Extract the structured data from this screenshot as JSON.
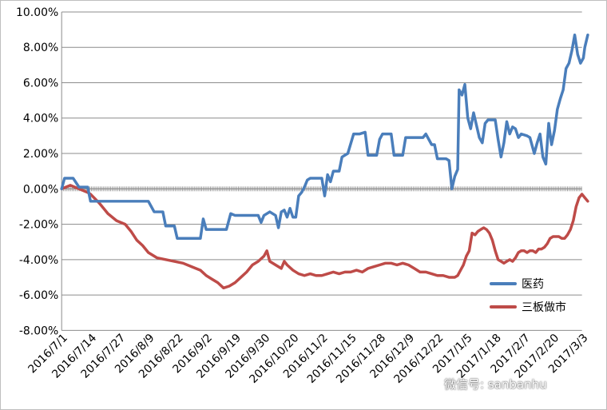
{
  "chart_data": {
    "type": "line",
    "title": "",
    "xlabel": "",
    "ylabel": "",
    "ylim": [
      -8,
      10
    ],
    "yticks": [
      "10.00%",
      "8.00%",
      "6.00%",
      "4.00%",
      "2.00%",
      "0.00%",
      "-2.00%",
      "-4.00%",
      "-6.00%",
      "-8.00%"
    ],
    "xticks": [
      "2016/7/1",
      "2016/7/14",
      "2016/7/27",
      "2016/8/9",
      "2016/8/22",
      "2016/9/2",
      "2016/9/19",
      "2016/9/30",
      "2016/10/20",
      "2016/11/2",
      "2016/11/15",
      "2016/11/28",
      "2016/12/9",
      "2016/12/22",
      "2017/1/5",
      "2017/1/18",
      "2017/2/7",
      "2017/2/20",
      "2017/3/3"
    ],
    "grid": "horizontal",
    "legend_position": "bottom-right",
    "series": [
      {
        "name": "医药",
        "color": "#4a7ebb",
        "points": [
          [
            0,
            0.0
          ],
          [
            0.1,
            0.6
          ],
          [
            0.4,
            0.6
          ],
          [
            0.6,
            0.1
          ],
          [
            0.9,
            0.1
          ],
          [
            1.0,
            -0.7
          ],
          [
            1.3,
            -0.7
          ],
          [
            1.8,
            -0.7
          ],
          [
            2.4,
            -0.7
          ],
          [
            3.0,
            -0.7
          ],
          [
            3.2,
            -1.3
          ],
          [
            3.5,
            -1.3
          ],
          [
            3.6,
            -2.1
          ],
          [
            3.9,
            -2.1
          ],
          [
            4.0,
            -2.8
          ],
          [
            4.4,
            -2.8
          ],
          [
            4.6,
            -2.8
          ],
          [
            4.8,
            -2.8
          ],
          [
            4.9,
            -1.7
          ],
          [
            5.0,
            -2.3
          ],
          [
            5.4,
            -2.3
          ],
          [
            5.7,
            -2.3
          ],
          [
            5.85,
            -1.4
          ],
          [
            6.0,
            -1.5
          ],
          [
            6.5,
            -1.5
          ],
          [
            6.8,
            -1.5
          ],
          [
            6.9,
            -1.9
          ],
          [
            7.0,
            -1.5
          ],
          [
            7.2,
            -1.3
          ],
          [
            7.4,
            -1.5
          ],
          [
            7.5,
            -2.2
          ],
          [
            7.6,
            -1.3
          ],
          [
            7.7,
            -1.2
          ],
          [
            7.8,
            -1.6
          ],
          [
            7.9,
            -1.1
          ],
          [
            8.0,
            -1.6
          ],
          [
            8.1,
            -1.6
          ],
          [
            8.2,
            -0.4
          ],
          [
            8.3,
            -0.2
          ],
          [
            8.4,
            0.1
          ],
          [
            8.5,
            0.5
          ],
          [
            8.6,
            0.6
          ],
          [
            8.8,
            0.6
          ],
          [
            9.0,
            0.6
          ],
          [
            9.1,
            -0.4
          ],
          [
            9.2,
            0.8
          ],
          [
            9.3,
            0.4
          ],
          [
            9.4,
            1.0
          ],
          [
            9.6,
            1.0
          ],
          [
            9.7,
            1.8
          ],
          [
            9.9,
            2.0
          ],
          [
            10.1,
            3.1
          ],
          [
            10.3,
            3.1
          ],
          [
            10.5,
            3.2
          ],
          [
            10.6,
            1.9
          ],
          [
            10.8,
            1.9
          ],
          [
            10.9,
            1.9
          ],
          [
            11.0,
            2.8
          ],
          [
            11.1,
            3.1
          ],
          [
            11.3,
            3.1
          ],
          [
            11.4,
            3.1
          ],
          [
            11.5,
            1.9
          ],
          [
            11.7,
            1.9
          ],
          [
            11.8,
            1.9
          ],
          [
            11.9,
            2.9
          ],
          [
            12.1,
            2.9
          ],
          [
            12.3,
            2.9
          ],
          [
            12.5,
            2.9
          ],
          [
            12.6,
            3.1
          ],
          [
            12.8,
            2.5
          ],
          [
            12.9,
            2.5
          ],
          [
            13.0,
            1.7
          ],
          [
            13.3,
            1.7
          ],
          [
            13.4,
            1.6
          ],
          [
            13.5,
            0.0
          ],
          [
            13.6,
            0.7
          ],
          [
            13.7,
            1.1
          ],
          [
            13.75,
            5.6
          ],
          [
            13.85,
            5.3
          ],
          [
            13.95,
            5.9
          ],
          [
            14.05,
            4.0
          ],
          [
            14.15,
            3.4
          ],
          [
            14.25,
            4.3
          ],
          [
            14.35,
            3.6
          ],
          [
            14.45,
            2.9
          ],
          [
            14.55,
            2.6
          ],
          [
            14.65,
            3.7
          ],
          [
            14.75,
            3.9
          ],
          [
            14.9,
            3.9
          ],
          [
            15.0,
            3.9
          ],
          [
            15.1,
            2.8
          ],
          [
            15.2,
            1.8
          ],
          [
            15.3,
            2.6
          ],
          [
            15.4,
            3.8
          ],
          [
            15.5,
            3.1
          ],
          [
            15.6,
            3.5
          ],
          [
            15.7,
            3.4
          ],
          [
            15.8,
            2.9
          ],
          [
            15.9,
            3.1
          ],
          [
            16.1,
            3.0
          ],
          [
            16.2,
            2.9
          ],
          [
            16.35,
            2.0
          ],
          [
            16.45,
            2.6
          ],
          [
            16.55,
            3.1
          ],
          [
            16.65,
            1.8
          ],
          [
            16.75,
            1.4
          ],
          [
            16.85,
            3.7
          ],
          [
            16.95,
            2.5
          ],
          [
            17.05,
            3.3
          ],
          [
            17.15,
            4.5
          ],
          [
            17.25,
            5.1
          ],
          [
            17.35,
            5.6
          ],
          [
            17.45,
            6.8
          ],
          [
            17.55,
            7.1
          ],
          [
            17.65,
            7.8
          ],
          [
            17.75,
            8.7
          ],
          [
            17.85,
            7.6
          ],
          [
            17.95,
            7.1
          ],
          [
            18.05,
            7.4
          ],
          [
            18.1,
            8.0
          ],
          [
            18.2,
            8.7
          ]
        ]
      },
      {
        "name": "三板做市",
        "color": "#be4b48",
        "points": [
          [
            0,
            0.0
          ],
          [
            0.3,
            0.2
          ],
          [
            0.6,
            0.0
          ],
          [
            0.9,
            -0.2
          ],
          [
            1.0,
            -0.3
          ],
          [
            1.3,
            -0.8
          ],
          [
            1.6,
            -1.4
          ],
          [
            1.9,
            -1.8
          ],
          [
            2.2,
            -2.0
          ],
          [
            2.4,
            -2.4
          ],
          [
            2.6,
            -2.9
          ],
          [
            2.8,
            -3.2
          ],
          [
            3.0,
            -3.6
          ],
          [
            3.3,
            -3.9
          ],
          [
            3.6,
            -4.0
          ],
          [
            3.9,
            -4.1
          ],
          [
            4.2,
            -4.2
          ],
          [
            4.5,
            -4.4
          ],
          [
            4.8,
            -4.6
          ],
          [
            5.0,
            -4.9
          ],
          [
            5.2,
            -5.1
          ],
          [
            5.4,
            -5.3
          ],
          [
            5.6,
            -5.6
          ],
          [
            5.8,
            -5.5
          ],
          [
            6.0,
            -5.3
          ],
          [
            6.2,
            -5.0
          ],
          [
            6.4,
            -4.7
          ],
          [
            6.6,
            -4.3
          ],
          [
            6.8,
            -4.1
          ],
          [
            7.0,
            -3.8
          ],
          [
            7.1,
            -3.5
          ],
          [
            7.2,
            -4.1
          ],
          [
            7.4,
            -4.3
          ],
          [
            7.6,
            -4.5
          ],
          [
            7.7,
            -4.1
          ],
          [
            7.8,
            -4.3
          ],
          [
            8.0,
            -4.6
          ],
          [
            8.2,
            -4.8
          ],
          [
            8.4,
            -4.9
          ],
          [
            8.6,
            -4.8
          ],
          [
            8.8,
            -4.9
          ],
          [
            9.0,
            -4.9
          ],
          [
            9.2,
            -4.8
          ],
          [
            9.4,
            -4.7
          ],
          [
            9.6,
            -4.8
          ],
          [
            9.8,
            -4.7
          ],
          [
            10.0,
            -4.7
          ],
          [
            10.2,
            -4.6
          ],
          [
            10.4,
            -4.7
          ],
          [
            10.6,
            -4.5
          ],
          [
            10.8,
            -4.4
          ],
          [
            11.0,
            -4.3
          ],
          [
            11.2,
            -4.2
          ],
          [
            11.4,
            -4.2
          ],
          [
            11.6,
            -4.3
          ],
          [
            11.8,
            -4.2
          ],
          [
            12.0,
            -4.3
          ],
          [
            12.2,
            -4.5
          ],
          [
            12.4,
            -4.7
          ],
          [
            12.6,
            -4.7
          ],
          [
            12.8,
            -4.8
          ],
          [
            13.0,
            -4.9
          ],
          [
            13.2,
            -4.9
          ],
          [
            13.4,
            -5.0
          ],
          [
            13.6,
            -5.0
          ],
          [
            13.7,
            -4.9
          ],
          [
            13.8,
            -4.6
          ],
          [
            13.9,
            -4.3
          ],
          [
            14.0,
            -3.8
          ],
          [
            14.1,
            -3.5
          ],
          [
            14.2,
            -2.5
          ],
          [
            14.3,
            -2.6
          ],
          [
            14.4,
            -2.4
          ],
          [
            14.5,
            -2.3
          ],
          [
            14.6,
            -2.2
          ],
          [
            14.7,
            -2.3
          ],
          [
            14.8,
            -2.5
          ],
          [
            14.9,
            -2.9
          ],
          [
            15.0,
            -3.5
          ],
          [
            15.1,
            -4.0
          ],
          [
            15.2,
            -4.1
          ],
          [
            15.3,
            -4.2
          ],
          [
            15.4,
            -4.1
          ],
          [
            15.5,
            -4.0
          ],
          [
            15.6,
            -4.1
          ],
          [
            15.7,
            -3.9
          ],
          [
            15.8,
            -3.6
          ],
          [
            15.9,
            -3.5
          ],
          [
            16.0,
            -3.5
          ],
          [
            16.1,
            -3.6
          ],
          [
            16.2,
            -3.5
          ],
          [
            16.3,
            -3.5
          ],
          [
            16.4,
            -3.6
          ],
          [
            16.5,
            -3.4
          ],
          [
            16.6,
            -3.4
          ],
          [
            16.7,
            -3.3
          ],
          [
            16.8,
            -3.1
          ],
          [
            16.9,
            -2.8
          ],
          [
            17.0,
            -2.7
          ],
          [
            17.2,
            -2.7
          ],
          [
            17.3,
            -2.8
          ],
          [
            17.4,
            -2.8
          ],
          [
            17.5,
            -2.6
          ],
          [
            17.6,
            -2.3
          ],
          [
            17.7,
            -1.8
          ],
          [
            17.8,
            -1.0
          ],
          [
            17.9,
            -0.5
          ],
          [
            18.0,
            -0.3
          ],
          [
            18.1,
            -0.5
          ],
          [
            18.2,
            -0.7
          ]
        ]
      }
    ]
  },
  "watermark": "微信号: sanbanhu"
}
